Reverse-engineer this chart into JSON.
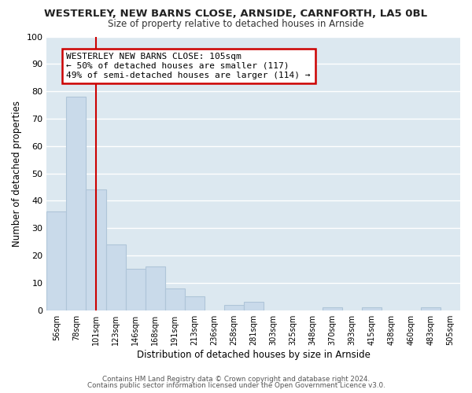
{
  "title": "WESTERLEY, NEW BARNS CLOSE, ARNSIDE, CARNFORTH, LA5 0BL",
  "subtitle": "Size of property relative to detached houses in Arnside",
  "xlabel": "Distribution of detached houses by size in Arnside",
  "ylabel": "Number of detached properties",
  "categories": [
    "56sqm",
    "78sqm",
    "101sqm",
    "123sqm",
    "146sqm",
    "168sqm",
    "191sqm",
    "213sqm",
    "236sqm",
    "258sqm",
    "281sqm",
    "303sqm",
    "325sqm",
    "348sqm",
    "370sqm",
    "393sqm",
    "415sqm",
    "438sqm",
    "460sqm",
    "483sqm",
    "505sqm"
  ],
  "values": [
    36,
    78,
    44,
    24,
    15,
    16,
    8,
    5,
    0,
    2,
    3,
    0,
    0,
    0,
    1,
    0,
    1,
    0,
    0,
    1,
    0
  ],
  "bar_color": "#c9daea",
  "bar_edge_color": "#afc5d8",
  "vline_x_index": 2,
  "vline_color": "#cc0000",
  "annotation_text": "WESTERLEY NEW BARNS CLOSE: 105sqm\n← 50% of detached houses are smaller (117)\n49% of semi-detached houses are larger (114) →",
  "annotation_box_color": "#ffffff",
  "annotation_box_edge": "#cc0000",
  "fig_bg_color": "#ffffff",
  "plot_bg_color": "#dce8f0",
  "grid_color": "#ffffff",
  "footer1": "Contains HM Land Registry data © Crown copyright and database right 2024.",
  "footer2": "Contains public sector information licensed under the Open Government Licence v3.0.",
  "ylim": [
    0,
    100
  ],
  "yticks": [
    0,
    10,
    20,
    30,
    40,
    50,
    60,
    70,
    80,
    90,
    100
  ]
}
